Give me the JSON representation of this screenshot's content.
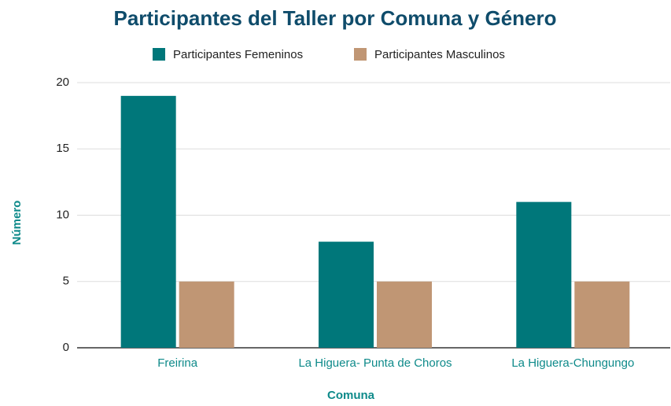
{
  "chart_data": {
    "type": "bar",
    "title": "Participantes del Taller por Comuna y Género",
    "x_label": "Comuna",
    "y_label": "Número",
    "categories": [
      "Freirina",
      "La Higuera- Punta de Choros",
      "La Higuera-Chungungo"
    ],
    "series": [
      {
        "name": "Participantes Femeninos",
        "color": "#00777a",
        "values": [
          19,
          8,
          11
        ]
      },
      {
        "name": "Participantes Masculinos",
        "color": "#c09674",
        "values": [
          5,
          5,
          5
        ]
      }
    ],
    "ylim": [
      0,
      20
    ],
    "yticks": [
      0,
      5,
      10,
      15,
      20
    ],
    "grid": true,
    "legend": "top"
  }
}
